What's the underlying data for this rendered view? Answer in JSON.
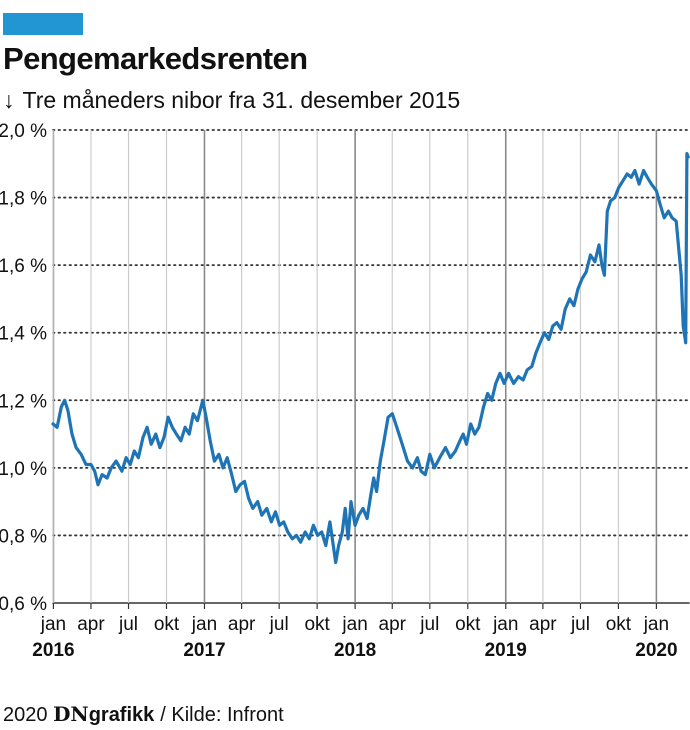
{
  "header": {
    "title": "Pengemarkedsrenten",
    "subtitle_arrow": "↓",
    "subtitle": "Tre måneders nibor fra 31. desember 2015"
  },
  "footer": {
    "year": "2020",
    "brand_a": "DN",
    "brand_b": "grafikk",
    "source": "/ Kilde: Infront"
  },
  "colors": {
    "accent": "#2196d3",
    "line": "#1f74b5",
    "grid": "#333333"
  },
  "chart_data": {
    "type": "line",
    "title": "Pengemarkedsrenten",
    "subtitle": "Tre måneders nibor fra 31. desember 2015",
    "ylim": [
      0.6,
      2.0
    ],
    "y_ticks": [
      {
        "value": 0.6,
        "label": "0,6 %"
      },
      {
        "value": 0.8,
        "label": "0,8 %"
      },
      {
        "value": 1.0,
        "label": "1,0 %"
      },
      {
        "value": 1.2,
        "label": "1,2 %"
      },
      {
        "value": 1.4,
        "label": "1,4 %"
      },
      {
        "value": 1.6,
        "label": "1,6 %"
      },
      {
        "value": 1.8,
        "label": "1,8 %"
      },
      {
        "value": 2.0,
        "label": "2,0 %"
      }
    ],
    "xlim": [
      "2015-12-31",
      "2020-03-20"
    ],
    "x_ticks": [
      {
        "date": "2016-01-01",
        "label": "jan",
        "year": "2016"
      },
      {
        "date": "2016-04-01",
        "label": "apr"
      },
      {
        "date": "2016-07-01",
        "label": "jul"
      },
      {
        "date": "2016-10-01",
        "label": "okt"
      },
      {
        "date": "2017-01-01",
        "label": "jan",
        "year": "2017"
      },
      {
        "date": "2017-04-01",
        "label": "apr"
      },
      {
        "date": "2017-07-01",
        "label": "jul"
      },
      {
        "date": "2017-10-01",
        "label": "okt"
      },
      {
        "date": "2018-01-01",
        "label": "jan",
        "year": "2018"
      },
      {
        "date": "2018-04-01",
        "label": "apr"
      },
      {
        "date": "2018-07-01",
        "label": "jul"
      },
      {
        "date": "2018-10-01",
        "label": "okt"
      },
      {
        "date": "2019-01-01",
        "label": "jan",
        "year": "2019"
      },
      {
        "date": "2019-04-01",
        "label": "apr"
      },
      {
        "date": "2019-07-01",
        "label": "jul"
      },
      {
        "date": "2019-10-01",
        "label": "okt"
      },
      {
        "date": "2020-01-01",
        "label": "jan",
        "year": "2020"
      }
    ],
    "series": [
      {
        "points": [
          [
            "2015-12-31",
            1.13
          ],
          [
            "2016-01-10",
            1.12
          ],
          [
            "2016-01-20",
            1.18
          ],
          [
            "2016-01-28",
            1.2
          ],
          [
            "2016-02-05",
            1.17
          ],
          [
            "2016-02-15",
            1.1
          ],
          [
            "2016-02-25",
            1.06
          ],
          [
            "2016-03-08",
            1.04
          ],
          [
            "2016-03-20",
            1.01
          ],
          [
            "2016-04-01",
            1.01
          ],
          [
            "2016-04-10",
            0.99
          ],
          [
            "2016-04-18",
            0.95
          ],
          [
            "2016-04-28",
            0.98
          ],
          [
            "2016-05-10",
            0.97
          ],
          [
            "2016-05-20",
            1.0
          ],
          [
            "2016-06-01",
            1.02
          ],
          [
            "2016-06-15",
            0.99
          ],
          [
            "2016-06-25",
            1.03
          ],
          [
            "2016-07-05",
            1.01
          ],
          [
            "2016-07-15",
            1.05
          ],
          [
            "2016-07-25",
            1.03
          ],
          [
            "2016-08-05",
            1.09
          ],
          [
            "2016-08-15",
            1.12
          ],
          [
            "2016-08-25",
            1.07
          ],
          [
            "2016-09-05",
            1.1
          ],
          [
            "2016-09-15",
            1.06
          ],
          [
            "2016-09-25",
            1.09
          ],
          [
            "2016-10-05",
            1.15
          ],
          [
            "2016-10-15",
            1.12
          ],
          [
            "2016-10-25",
            1.1
          ],
          [
            "2016-11-05",
            1.08
          ],
          [
            "2016-11-15",
            1.12
          ],
          [
            "2016-11-25",
            1.1
          ],
          [
            "2016-12-05",
            1.16
          ],
          [
            "2016-12-15",
            1.14
          ],
          [
            "2016-12-28",
            1.2
          ],
          [
            "2017-01-05",
            1.15
          ],
          [
            "2017-01-15",
            1.08
          ],
          [
            "2017-01-25",
            1.02
          ],
          [
            "2017-02-05",
            1.04
          ],
          [
            "2017-02-15",
            1.0
          ],
          [
            "2017-02-25",
            1.03
          ],
          [
            "2017-03-08",
            0.98
          ],
          [
            "2017-03-18",
            0.93
          ],
          [
            "2017-03-28",
            0.95
          ],
          [
            "2017-04-08",
            0.96
          ],
          [
            "2017-04-18",
            0.91
          ],
          [
            "2017-04-28",
            0.88
          ],
          [
            "2017-05-10",
            0.9
          ],
          [
            "2017-05-20",
            0.86
          ],
          [
            "2017-06-01",
            0.88
          ],
          [
            "2017-06-12",
            0.84
          ],
          [
            "2017-06-22",
            0.87
          ],
          [
            "2017-07-02",
            0.83
          ],
          [
            "2017-07-12",
            0.84
          ],
          [
            "2017-07-22",
            0.81
          ],
          [
            "2017-08-02",
            0.79
          ],
          [
            "2017-08-12",
            0.8
          ],
          [
            "2017-08-22",
            0.78
          ],
          [
            "2017-09-02",
            0.81
          ],
          [
            "2017-09-12",
            0.79
          ],
          [
            "2017-09-22",
            0.83
          ],
          [
            "2017-10-02",
            0.8
          ],
          [
            "2017-10-12",
            0.81
          ],
          [
            "2017-10-22",
            0.77
          ],
          [
            "2017-11-01",
            0.84
          ],
          [
            "2017-11-08",
            0.78
          ],
          [
            "2017-11-15",
            0.72
          ],
          [
            "2017-11-22",
            0.77
          ],
          [
            "2017-12-01",
            0.81
          ],
          [
            "2017-12-08",
            0.88
          ],
          [
            "2017-12-15",
            0.79
          ],
          [
            "2017-12-22",
            0.9
          ],
          [
            "2018-01-01",
            0.83
          ],
          [
            "2018-01-10",
            0.86
          ],
          [
            "2018-01-20",
            0.88
          ],
          [
            "2018-01-30",
            0.85
          ],
          [
            "2018-02-08",
            0.92
          ],
          [
            "2018-02-15",
            0.97
          ],
          [
            "2018-02-22",
            0.93
          ],
          [
            "2018-03-03",
            1.02
          ],
          [
            "2018-03-12",
            1.08
          ],
          [
            "2018-03-22",
            1.15
          ],
          [
            "2018-04-01",
            1.16
          ],
          [
            "2018-04-12",
            1.12
          ],
          [
            "2018-04-25",
            1.07
          ],
          [
            "2018-05-08",
            1.02
          ],
          [
            "2018-05-20",
            1.0
          ],
          [
            "2018-06-01",
            1.03
          ],
          [
            "2018-06-10",
            0.99
          ],
          [
            "2018-06-20",
            0.98
          ],
          [
            "2018-07-01",
            1.04
          ],
          [
            "2018-07-12",
            1.0
          ],
          [
            "2018-07-25",
            1.03
          ],
          [
            "2018-08-08",
            1.06
          ],
          [
            "2018-08-20",
            1.03
          ],
          [
            "2018-09-01",
            1.05
          ],
          [
            "2018-09-12",
            1.08
          ],
          [
            "2018-09-20",
            1.1
          ],
          [
            "2018-09-28",
            1.07
          ],
          [
            "2018-10-08",
            1.13
          ],
          [
            "2018-10-18",
            1.1
          ],
          [
            "2018-10-28",
            1.12
          ],
          [
            "2018-11-08",
            1.18
          ],
          [
            "2018-11-18",
            1.22
          ],
          [
            "2018-11-28",
            1.2
          ],
          [
            "2018-12-08",
            1.25
          ],
          [
            "2018-12-18",
            1.28
          ],
          [
            "2018-12-28",
            1.25
          ],
          [
            "2019-01-08",
            1.28
          ],
          [
            "2019-01-20",
            1.25
          ],
          [
            "2019-02-01",
            1.27
          ],
          [
            "2019-02-12",
            1.26
          ],
          [
            "2019-02-22",
            1.29
          ],
          [
            "2019-03-05",
            1.3
          ],
          [
            "2019-03-15",
            1.34
          ],
          [
            "2019-03-25",
            1.37
          ],
          [
            "2019-04-05",
            1.4
          ],
          [
            "2019-04-15",
            1.38
          ],
          [
            "2019-04-25",
            1.42
          ],
          [
            "2019-05-05",
            1.43
          ],
          [
            "2019-05-15",
            1.41
          ],
          [
            "2019-05-25",
            1.47
          ],
          [
            "2019-06-05",
            1.5
          ],
          [
            "2019-06-15",
            1.48
          ],
          [
            "2019-06-25",
            1.53
          ],
          [
            "2019-07-05",
            1.56
          ],
          [
            "2019-07-15",
            1.58
          ],
          [
            "2019-07-25",
            1.63
          ],
          [
            "2019-08-05",
            1.61
          ],
          [
            "2019-08-15",
            1.66
          ],
          [
            "2019-08-22",
            1.6
          ],
          [
            "2019-08-28",
            1.57
          ],
          [
            "2019-09-04",
            1.76
          ],
          [
            "2019-09-12",
            1.79
          ],
          [
            "2019-09-22",
            1.8
          ],
          [
            "2019-10-02",
            1.83
          ],
          [
            "2019-10-12",
            1.85
          ],
          [
            "2019-10-22",
            1.87
          ],
          [
            "2019-11-01",
            1.86
          ],
          [
            "2019-11-10",
            1.88
          ],
          [
            "2019-11-20",
            1.84
          ],
          [
            "2019-12-01",
            1.88
          ],
          [
            "2019-12-10",
            1.86
          ],
          [
            "2019-12-20",
            1.84
          ],
          [
            "2020-01-01",
            1.82
          ],
          [
            "2020-01-10",
            1.78
          ],
          [
            "2020-01-20",
            1.74
          ],
          [
            "2020-01-30",
            1.76
          ],
          [
            "2020-02-08",
            1.74
          ],
          [
            "2020-02-18",
            1.73
          ],
          [
            "2020-02-24",
            1.65
          ],
          [
            "2020-03-01",
            1.57
          ],
          [
            "2020-03-06",
            1.42
          ],
          [
            "2020-03-12",
            1.37
          ],
          [
            "2020-03-15",
            1.93
          ],
          [
            "2020-03-18",
            1.92
          ]
        ]
      }
    ]
  }
}
